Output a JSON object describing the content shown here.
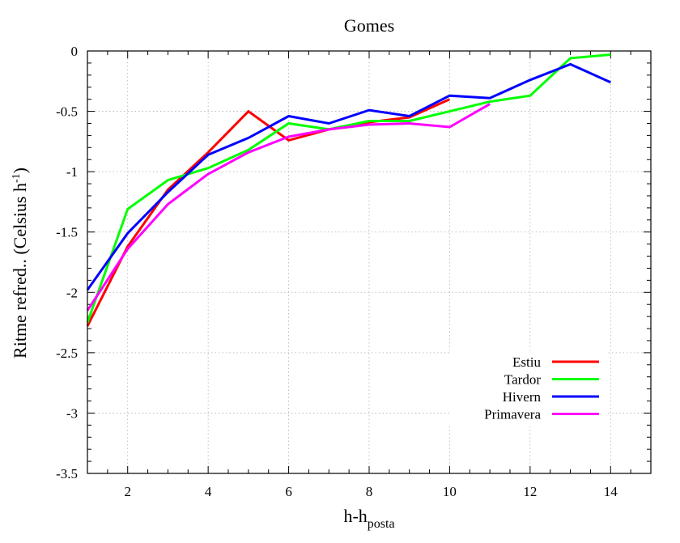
{
  "chart_data": {
    "type": "line",
    "title": "Gomes",
    "xlabel_main": "h-h",
    "xlabel_sub": "posta",
    "ylabel_main": "Ritme refred.. (Celsius h",
    "ylabel_sup": "-1",
    "ylabel_close": ")",
    "xlim": [
      1,
      15
    ],
    "ylim": [
      -3.5,
      0
    ],
    "xticks": [
      2,
      4,
      6,
      8,
      10,
      12,
      14
    ],
    "xtick_labels": [
      "2",
      "4",
      "6",
      "8",
      "10",
      "12",
      "14"
    ],
    "yticks": [
      0,
      -0.5,
      -1,
      -1.5,
      -2,
      -2.5,
      -3,
      -3.5
    ],
    "ytick_labels": [
      "0",
      "-0.5",
      "-1",
      "-1.5",
      "-2",
      "-2.5",
      "-3",
      "-3.5"
    ],
    "grid": true,
    "legend_position": "bottom-right",
    "series": [
      {
        "name": "Estiu",
        "color": "#ff0000",
        "x": [
          1,
          2,
          3,
          4,
          5,
          6,
          7,
          8,
          9,
          10
        ],
        "y": [
          -2.28,
          -1.62,
          -1.15,
          -0.84,
          -0.5,
          -0.74,
          -0.65,
          -0.59,
          -0.55,
          -0.4
        ]
      },
      {
        "name": "Tardor",
        "color": "#00ff00",
        "x": [
          1,
          2,
          3,
          4,
          5,
          6,
          7,
          8,
          9,
          10,
          11,
          12,
          13,
          14
        ],
        "y": [
          -2.25,
          -1.31,
          -1.07,
          -0.97,
          -0.82,
          -0.6,
          -0.65,
          -0.58,
          -0.58,
          -0.5,
          -0.42,
          -0.37,
          -0.06,
          -0.03
        ]
      },
      {
        "name": "Hivern",
        "color": "#0000ff",
        "x": [
          1,
          2,
          3,
          4,
          5,
          6,
          7,
          8,
          9,
          10,
          11,
          12,
          13,
          14
        ],
        "y": [
          -1.98,
          -1.51,
          -1.17,
          -0.86,
          -0.72,
          -0.54,
          -0.6,
          -0.49,
          -0.54,
          -0.37,
          -0.39,
          -0.24,
          -0.11,
          -0.26
        ]
      },
      {
        "name": "Primavera",
        "color": "#ff00ff",
        "x": [
          1,
          2,
          3,
          4,
          5,
          6,
          7,
          8,
          9,
          10,
          11
        ],
        "y": [
          -2.15,
          -1.64,
          -1.27,
          -1.02,
          -0.84,
          -0.71,
          -0.65,
          -0.61,
          -0.6,
          -0.63,
          -0.44
        ]
      }
    ]
  }
}
